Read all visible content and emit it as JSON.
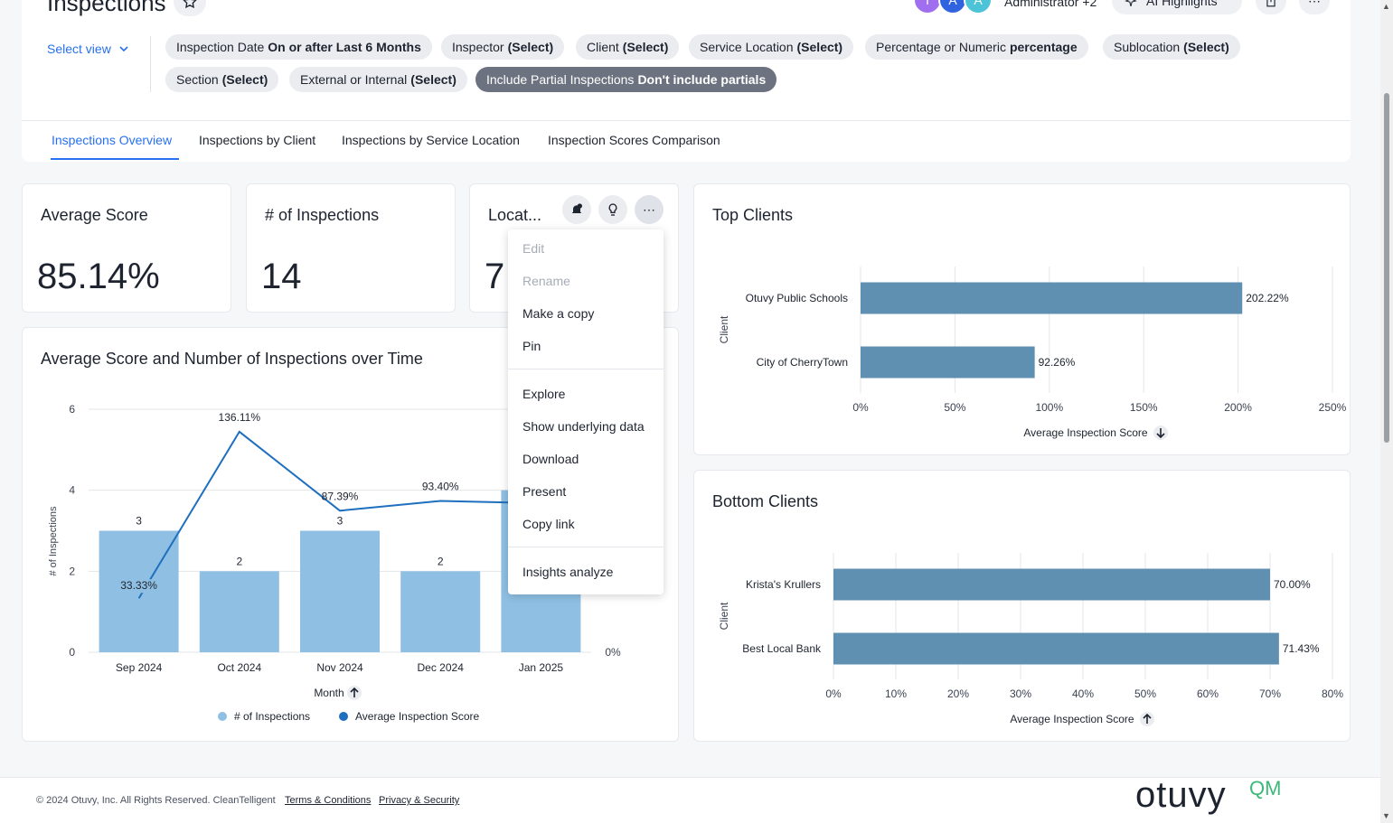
{
  "header": {
    "title": "Inspections",
    "avatars": [
      {
        "letter": "T",
        "color": "#9f6ff0"
      },
      {
        "letter": "A",
        "color": "#2f63e0"
      },
      {
        "letter": "A",
        "color": "#4cc3d6"
      }
    ],
    "admin_label": "Administrator +2",
    "ai_label": "AI Highlights"
  },
  "filters": {
    "select_view": "Select view",
    "chips": [
      {
        "label": "Inspection Date",
        "value": "On or after Last 6 Months"
      },
      {
        "label": "Inspector",
        "value": "(Select)"
      },
      {
        "label": "Client",
        "value": "(Select)"
      },
      {
        "label": "Service Location",
        "value": "(Select)"
      },
      {
        "label": "Percentage or Numeric",
        "value": "percentage"
      },
      {
        "label": "Sublocation",
        "value": "(Select)"
      },
      {
        "label": "Section",
        "value": "(Select)"
      },
      {
        "label": "External or Internal",
        "value": "(Select)"
      },
      {
        "label": "Include Partial Inspections",
        "value": "Don't include partials"
      }
    ]
  },
  "tabs": [
    "Inspections Overview",
    "Inspections by Client",
    "Inspections by Service Location",
    "Inspection Scores Comparison"
  ],
  "kpis": [
    {
      "title": "Average Score",
      "value": "85.14%"
    },
    {
      "title": "# of Inspections",
      "value": "14"
    },
    {
      "title": "Locat...",
      "value": "7"
    }
  ],
  "menu": {
    "items_group1": [
      {
        "label": "Edit",
        "disabled": true
      },
      {
        "label": "Rename",
        "disabled": true
      },
      {
        "label": "Make a copy",
        "disabled": false
      },
      {
        "label": "Pin",
        "disabled": false
      }
    ],
    "items_group2": [
      "Explore",
      "Show underlying data",
      "Download",
      "Present",
      "Copy link"
    ],
    "items_group3": [
      "Insights analyze"
    ]
  },
  "footer": {
    "copyright": "© 2024 Otuvy, Inc. All Rights Reserved. CleanTelligent",
    "terms": "Terms & Conditions",
    "privacy": "Privacy & Security",
    "logo": "otuvy",
    "logo_suffix": "QM"
  },
  "chart_data": [
    {
      "type": "bar+line",
      "title": "Average Score and Number of Inspections over Time",
      "xlabel": "Month",
      "ylabel": "# of Inspections",
      "categories": [
        "Sep 2024",
        "Oct 2024",
        "Nov 2024",
        "Dec 2024",
        "Jan 2025"
      ],
      "ylim": [
        0,
        6
      ],
      "yticks": [
        0,
        2,
        4,
        6
      ],
      "y2_tick_label": "0%",
      "series": [
        {
          "name": "# of Inspections",
          "type": "bar",
          "color": "#8fc0e3",
          "values": [
            3,
            2,
            3,
            2,
            4
          ],
          "labels": [
            "3",
            "2",
            "3",
            "2",
            ""
          ]
        },
        {
          "name": "Average Inspection Score",
          "type": "line",
          "color": "#1f6fbf",
          "values": [
            33.33,
            136.11,
            87.39,
            93.4,
            92.0
          ],
          "labels": [
            "33.33%",
            "136.11%",
            "87.39%",
            "93.40%",
            ""
          ]
        }
      ],
      "line_scale_max_percent": 150
    },
    {
      "type": "bar",
      "orientation": "horizontal",
      "title": "Top Clients",
      "ylabel": "Client",
      "xlabel": "Average Inspection Score",
      "sort_icon": "arrow-down-icon",
      "categories": [
        "Otuvy Public Schools",
        "City of CherryTown"
      ],
      "values": [
        202.22,
        92.26
      ],
      "labels": [
        "202.22%",
        "92.26%"
      ],
      "xlim": [
        0,
        250
      ],
      "xticks": [
        "0%",
        "50%",
        "100%",
        "150%",
        "200%",
        "250%"
      ],
      "color": "#5f8fb1"
    },
    {
      "type": "bar",
      "orientation": "horizontal",
      "title": "Bottom Clients",
      "ylabel": "Client",
      "xlabel": "Average Inspection Score",
      "sort_icon": "arrow-up-icon",
      "categories": [
        "Krista's Krullers",
        "Best Local Bank"
      ],
      "values": [
        70.0,
        71.43
      ],
      "labels": [
        "70.00%",
        "71.43%"
      ],
      "xlim": [
        0,
        80
      ],
      "xticks": [
        "0%",
        "10%",
        "20%",
        "30%",
        "40%",
        "50%",
        "60%",
        "70%",
        "80%"
      ],
      "color": "#5f8fb1"
    }
  ]
}
